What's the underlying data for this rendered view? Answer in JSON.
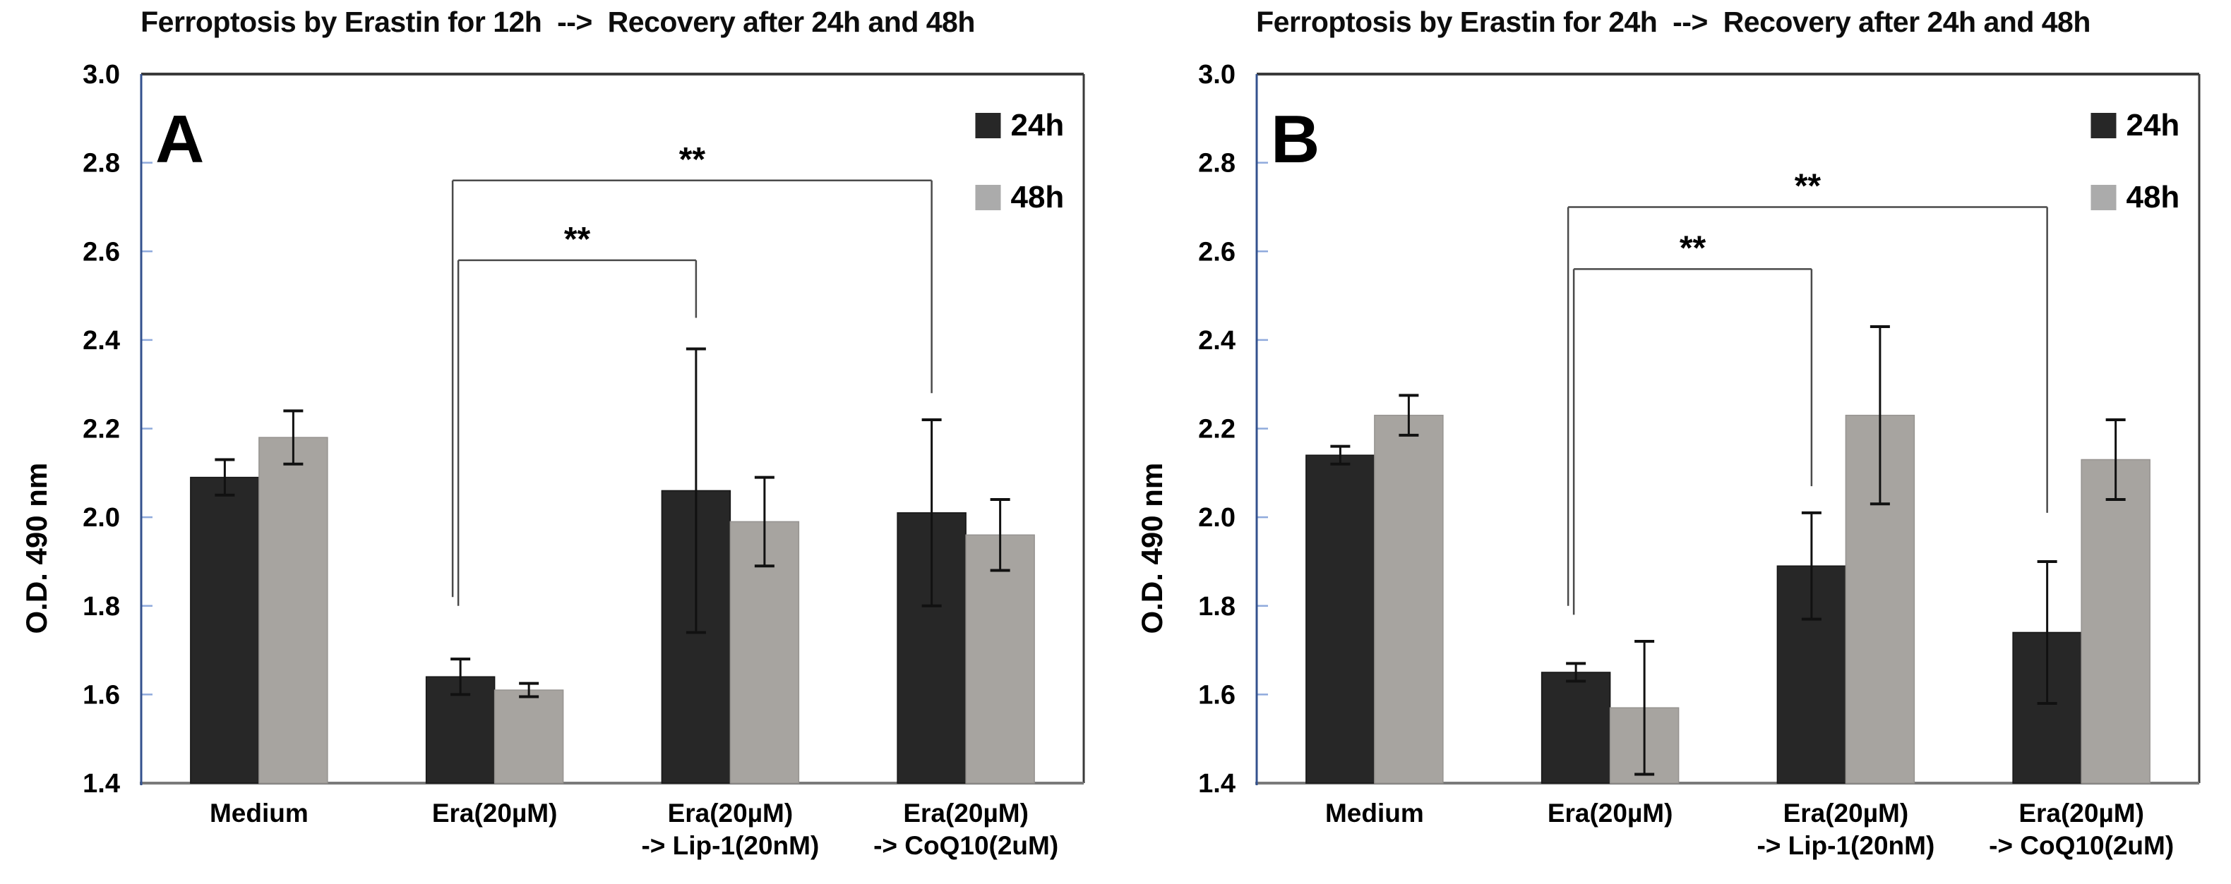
{
  "figure": {
    "background": "#ffffff",
    "description_texts": {
      "star_label": "**"
    }
  },
  "colors": {
    "series_24h_fill": "#272727",
    "series_24h_stroke": "#161616",
    "series_48h_fill": "#a7a4a0",
    "series_48h_stroke": "#969390",
    "legend_48h_swatch": "#ababab",
    "axis_line": "#33518e",
    "axis_tick": "#8faadc",
    "frame": "#3a3a3a",
    "baseline": "#7a7a7a",
    "bracket": "#4a4a4a",
    "error_bar": "#111111",
    "text": "#000000"
  },
  "chart_data": [
    {
      "type": "bar",
      "panel_label": "A",
      "title": "Ferroptosis by Erastin for 12h  -->  Recovery after 24h and 48h",
      "ylabel": "O.D. 490 nm",
      "ylim": [
        1.4,
        3.0
      ],
      "ytick_step": 0.2,
      "grid": false,
      "legend_position": "top-right",
      "categories": [
        "Medium",
        "Era(20µM)",
        "Era(20µM)\n-> Lip-1(20nM)",
        "Era(20µM)\n-> CoQ10(2uM)"
      ],
      "series": [
        {
          "name": "24h",
          "values": [
            2.09,
            1.64,
            2.06,
            2.01
          ],
          "errors": [
            0.04,
            0.04,
            0.32,
            0.21
          ]
        },
        {
          "name": "48h",
          "values": [
            2.18,
            1.61,
            1.99,
            1.96
          ],
          "errors": [
            0.06,
            0.015,
            0.1,
            0.08
          ]
        }
      ],
      "significance": [
        {
          "label": "**",
          "from_category": 1,
          "to_category": 2,
          "level": 2.58,
          "left_drop_to": 1.8,
          "right_drop_to": 2.45
        },
        {
          "label": "**",
          "from_category": 1,
          "to_category": 3,
          "level": 2.76,
          "left_drop_to": 1.82,
          "right_drop_to": 2.28
        }
      ]
    },
    {
      "type": "bar",
      "panel_label": "B",
      "title": "Ferroptosis by Erastin for 24h  -->  Recovery after 24h and 48h",
      "ylabel": "O.D. 490 nm",
      "ylim": [
        1.4,
        3.0
      ],
      "ytick_step": 0.2,
      "grid": false,
      "legend_position": "top-right",
      "categories": [
        "Medium",
        "Era(20µM)",
        "Era(20µM)\n-> Lip-1(20nM)",
        "Era(20µM)\n-> CoQ10(2uM)"
      ],
      "series": [
        {
          "name": "24h",
          "values": [
            2.14,
            1.65,
            1.89,
            1.74
          ],
          "errors": [
            0.02,
            0.02,
            0.12,
            0.16
          ]
        },
        {
          "name": "48h",
          "values": [
            2.23,
            1.57,
            2.23,
            2.13
          ],
          "errors": [
            0.045,
            0.15,
            0.2,
            0.09
          ]
        }
      ],
      "significance": [
        {
          "label": "**",
          "from_category": 1,
          "to_category": 2,
          "level": 2.56,
          "left_drop_to": 1.78,
          "right_drop_to": 2.07
        },
        {
          "label": "**",
          "from_category": 1,
          "to_category": 3,
          "level": 2.7,
          "left_drop_to": 1.8,
          "right_drop_to": 2.01
        }
      ]
    }
  ],
  "legend": {
    "items": [
      {
        "label": "24h"
      },
      {
        "label": "48h"
      }
    ]
  }
}
